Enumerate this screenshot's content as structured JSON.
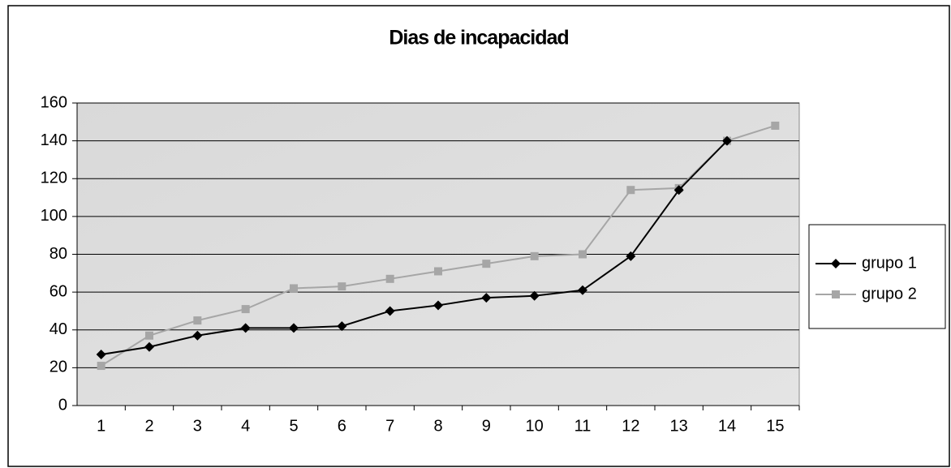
{
  "chart_data": {
    "type": "line",
    "title": "Dias de incapacidad",
    "categories": [
      "1",
      "2",
      "3",
      "4",
      "5",
      "6",
      "7",
      "8",
      "9",
      "10",
      "11",
      "12",
      "13",
      "14",
      "15"
    ],
    "series": [
      {
        "name": "grupo  1",
        "color": "#000000",
        "marker": "diamond",
        "values": [
          27,
          31,
          37,
          41,
          41,
          42,
          50,
          53,
          57,
          58,
          61,
          79,
          114,
          140,
          null
        ]
      },
      {
        "name": "grupo 2",
        "color": "#a6a6a6",
        "marker": "square",
        "values": [
          21,
          37,
          45,
          51,
          62,
          63,
          67,
          71,
          75,
          79,
          80,
          114,
          115,
          140,
          148
        ]
      }
    ],
    "ylim": [
      0,
      160
    ],
    "yticks": [
      0,
      20,
      40,
      60,
      80,
      100,
      120,
      140,
      160
    ],
    "grid": true,
    "legend": "right"
  }
}
